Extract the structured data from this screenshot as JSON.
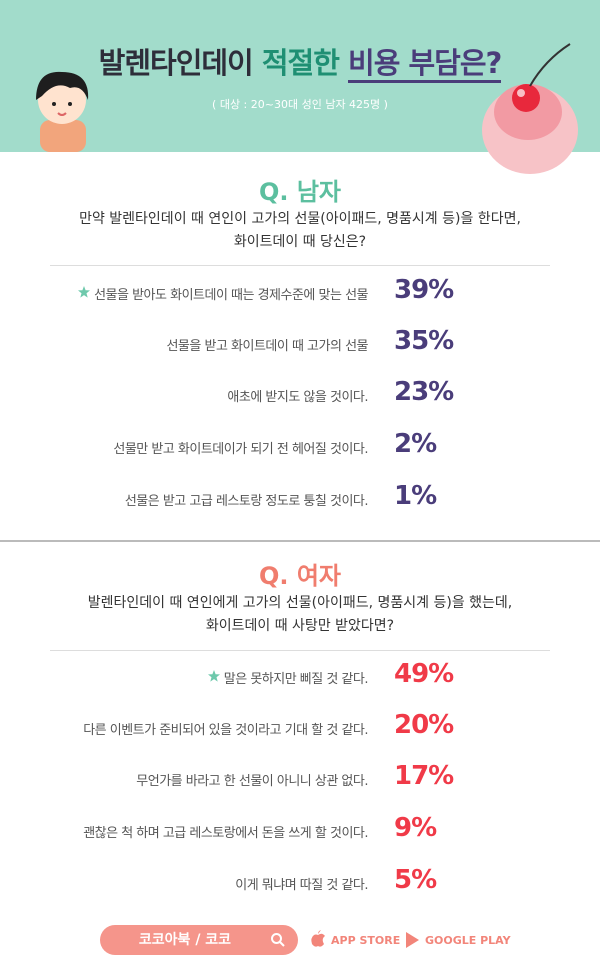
{
  "header": {
    "title_parts": [
      "발렌타인데이",
      "적절한",
      "비용 부담은?"
    ],
    "subtitle": "( 대상 : 20~30대 성인 남자 425명 )"
  },
  "sections": [
    {
      "label": "Q. 남자",
      "question": [
        "만약 발렌타인데이 때 연인이 고가의 선물(아이패드, 명품시계 등)을 한다면,",
        "화이트데이 때 당신은?"
      ],
      "items": [
        {
          "text": "선물을 받아도 화이트데이 때는 경제수준에 맞는 선물",
          "percent": "39%"
        },
        {
          "text": "선물을 받고 화이트데이 때 고가의 선물",
          "percent": "35%"
        },
        {
          "text": "애초에 받지도 않을 것이다.",
          "percent": "23%"
        },
        {
          "text": "선물만 받고 화이트데이가 되기 전 헤어질 것이다.",
          "percent": "2%"
        },
        {
          "text": "선물은 받고 고급 레스토랑 정도로 퉁칠 것이다.",
          "percent": "1%"
        }
      ]
    },
    {
      "label": "Q. 여자",
      "question": [
        "발렌타인데이 때 연인에게 고가의 선물(아이패드, 명품시계 등)을 했는데,",
        "화이트데이 때 사탕만 받았다면?"
      ],
      "items": [
        {
          "text": "말은 못하지만 삐질 것 같다.",
          "percent": "49%"
        },
        {
          "text": "다른 이벤트가 준비되어 있을 것이라고 기대 할 것 같다.",
          "percent": "20%"
        },
        {
          "text": "무언가를 바라고 한 선물이 아니니 상관 없다.",
          "percent": "17%"
        },
        {
          "text": "괜찮은 척 하며 고급 레스토랑에서 돈을 쓰게 할 것이다.",
          "percent": "9%"
        },
        {
          "text": "이게 뭐냐며 따질 것 같다.",
          "percent": "5%"
        }
      ]
    }
  ],
  "footer": {
    "search": "코코아북 / 코코",
    "app_store": "APP STORE",
    "google_play": "GOOGLE PLAY"
  }
}
